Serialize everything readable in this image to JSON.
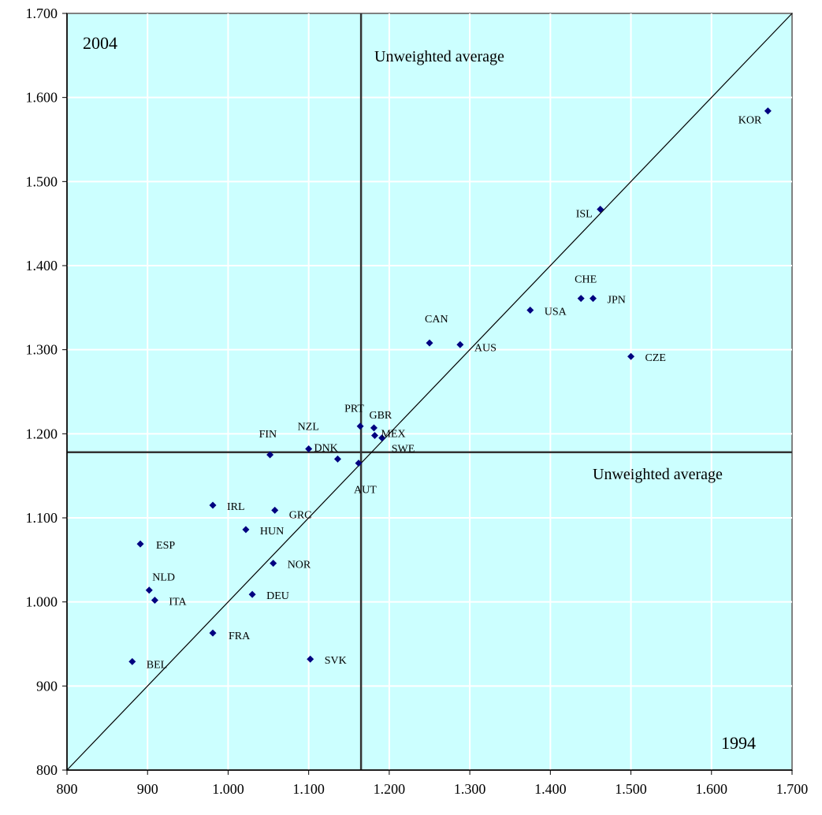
{
  "chart_data": {
    "type": "scatter",
    "x_ticks": [
      "800",
      "900",
      "1.000",
      "1.100",
      "1.200",
      "1.300",
      "1.400",
      "1.500",
      "1.600",
      "1.700"
    ],
    "y_ticks": [
      "800",
      "900",
      "1.000",
      "1.100",
      "1.200",
      "1.300",
      "1.400",
      "1.500",
      "1.600",
      "1.700"
    ],
    "xlim": [
      800,
      1700
    ],
    "ylim": [
      800,
      1700
    ],
    "grid": true,
    "diagonal_line": true,
    "corner_labels": {
      "top_left": "2004",
      "bottom_right": "1994"
    },
    "average_lines": {
      "x": 1165,
      "y": 1178,
      "x_label": "Unweighted average",
      "y_label": "Unweighted average"
    },
    "points": [
      {
        "label": "KOR",
        "x": 1670,
        "y": 1584
      },
      {
        "label": "ISL",
        "x": 1462,
        "y": 1467
      },
      {
        "label": "CHE",
        "x": 1438,
        "y": 1361
      },
      {
        "label": "JPN",
        "x": 1453,
        "y": 1361
      },
      {
        "label": "USA",
        "x": 1375,
        "y": 1347
      },
      {
        "label": "CAN",
        "x": 1250,
        "y": 1308
      },
      {
        "label": "AUS",
        "x": 1288,
        "y": 1306
      },
      {
        "label": "CZE",
        "x": 1500,
        "y": 1292
      },
      {
        "label": "PRT",
        "x": 1164,
        "y": 1209
      },
      {
        "label": "GBR",
        "x": 1181,
        "y": 1207
      },
      {
        "label": "MEX",
        "x": 1182,
        "y": 1198
      },
      {
        "label": "SWE",
        "x": 1191,
        "y": 1195
      },
      {
        "label": "NZL",
        "x": 1100,
        "y": 1182
      },
      {
        "label": "FIN",
        "x": 1052,
        "y": 1175
      },
      {
        "label": "DNK",
        "x": 1136,
        "y": 1170
      },
      {
        "label": "AUT",
        "x": 1162,
        "y": 1165
      },
      {
        "label": "IRL",
        "x": 981,
        "y": 1115
      },
      {
        "label": "GRC",
        "x": 1058,
        "y": 1109
      },
      {
        "label": "HUN",
        "x": 1022,
        "y": 1086
      },
      {
        "label": "ESP",
        "x": 891,
        "y": 1069
      },
      {
        "label": "NOR",
        "x": 1056,
        "y": 1046
      },
      {
        "label": "NLD",
        "x": 902,
        "y": 1014
      },
      {
        "label": "DEU",
        "x": 1030,
        "y": 1009
      },
      {
        "label": "ITA",
        "x": 909,
        "y": 1002
      },
      {
        "label": "FRA",
        "x": 981,
        "y": 963
      },
      {
        "label": "BEL",
        "x": 881,
        "y": 929
      },
      {
        "label": "SVK",
        "x": 1102,
        "y": 932
      }
    ]
  }
}
